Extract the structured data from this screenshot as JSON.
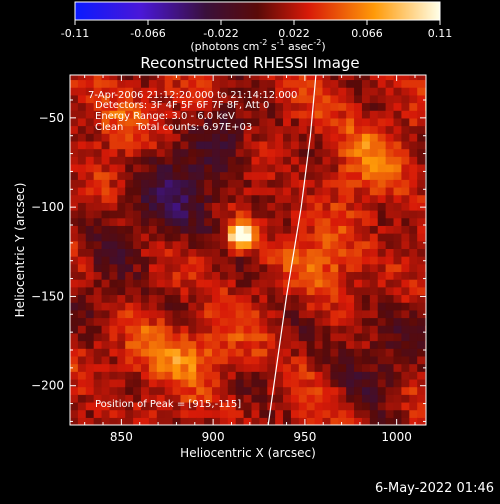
{
  "chart_data": {
    "type": "heatmap",
    "title": "Reconstructed RHESSI Image",
    "xlabel": "Heliocentric X (arcsec)",
    "ylabel": "Heliocentric Y (arcsec)",
    "xlim": [
      822,
      1016
    ],
    "ylim": [
      -222,
      -26
    ],
    "x_ticks": [
      850,
      900,
      950,
      1000
    ],
    "y_ticks": [
      -50,
      -100,
      -150,
      -200
    ],
    "colorbar": {
      "ticks": [
        "-0.11",
        "-0.066",
        "-0.022",
        "0.022",
        "0.066",
        "0.11"
      ],
      "units_label": "(photons cm",
      "units_sup1": "-2",
      "units_mid": " s",
      "units_sup2": "-1",
      "units_mid2": " asec",
      "units_sup3": "-2",
      "units_end": ")",
      "range": [
        -0.11,
        0.11
      ]
    },
    "annotations": [
      "7-Apr-2006 21:12:20.000 to 21:14:12.000",
      "Detectors: 3F 4F 5F 6F 7F 8F, Att 0",
      "Energy Range: 3.0 - 6.0 keV",
      "Clean    Total counts: 6.97E+03"
    ],
    "peak_label": "Position of Peak = [915,-115]",
    "peak": {
      "x": 915,
      "y": -115,
      "value": 0.11
    },
    "limb_curve": [
      [
        956,
        -26
      ],
      [
        953,
        -60
      ],
      [
        948,
        -100
      ],
      [
        940,
        -150
      ],
      [
        930,
        -222
      ]
    ]
  },
  "footer": {
    "timestamp": "6-May-2022 01:46"
  },
  "colors": {
    "background": "#000000",
    "text": "#ffffff",
    "limb": "#ffffff"
  }
}
